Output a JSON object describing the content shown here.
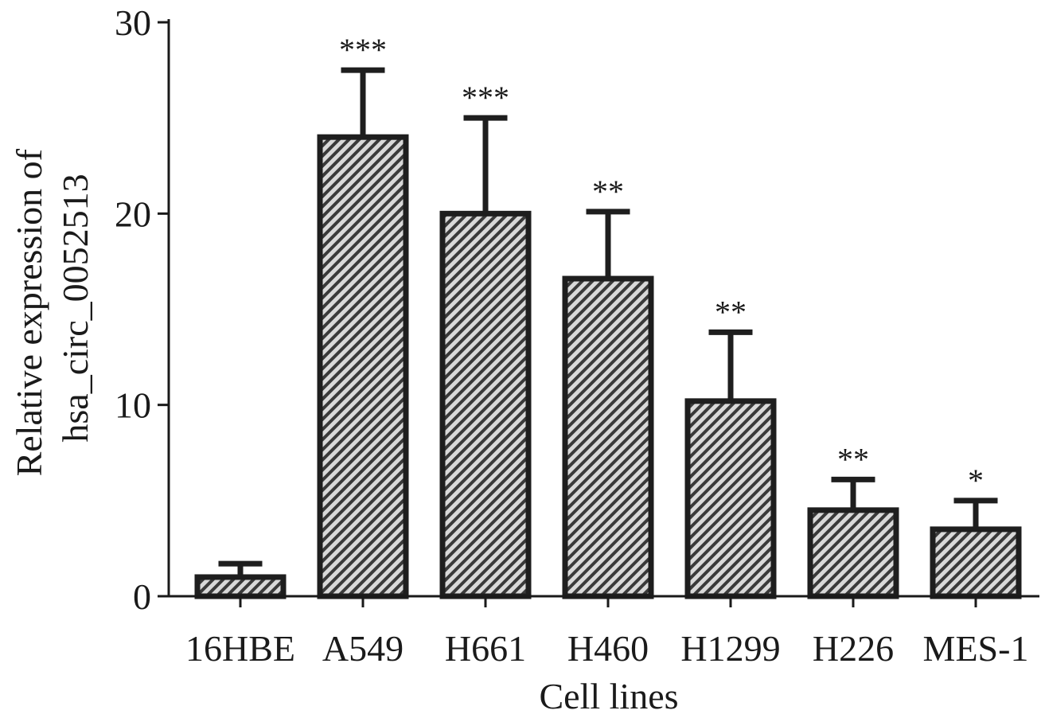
{
  "chart_data": {
    "type": "bar",
    "title": "",
    "xlabel": "Cell lines",
    "ylabel_lines": [
      "Relative expression of",
      "hsa_circ_0052513"
    ],
    "categories": [
      "16HBE",
      "A549",
      "H661",
      "H460",
      "H1299",
      "H226",
      "MES-1"
    ],
    "values": [
      1.0,
      24.0,
      20.0,
      16.6,
      10.2,
      4.5,
      3.5
    ],
    "error_upper": [
      1.7,
      27.5,
      25.0,
      20.1,
      13.8,
      6.1,
      5.0
    ],
    "significance": [
      "",
      "***",
      "***",
      "**",
      "**",
      "**",
      "*"
    ],
    "ylim": [
      0,
      30
    ],
    "yticks": [
      "0",
      "10",
      "20",
      "30"
    ],
    "grid": false,
    "bar_fill": "hatched",
    "colors": {
      "bar_outline": "#1e1e1e",
      "hatch_stripe": "#3a3a3a",
      "hatch_background": "#d9d9d9",
      "axis": "#1a1a1a",
      "text": "#1a1a1a"
    }
  }
}
